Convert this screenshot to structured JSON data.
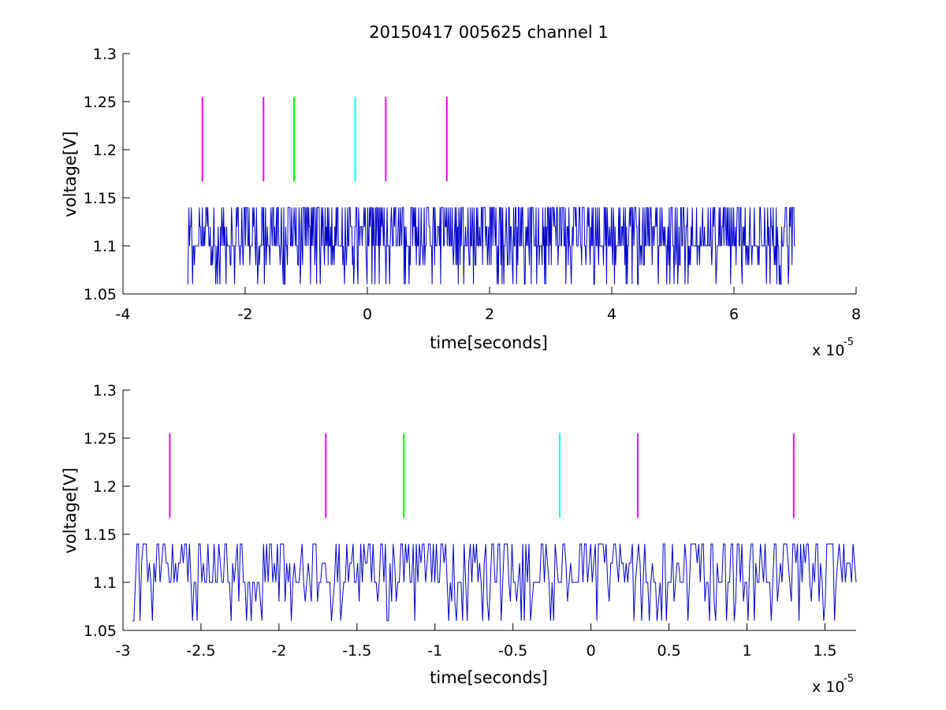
{
  "chart_data": [
    {
      "type": "line",
      "title": "20150417 005625 channel 1",
      "xlabel": "time[seconds]",
      "ylabel": "voltage[V]",
      "x_multiplier_base": "x 10",
      "x_multiplier_exp": "-5",
      "xlim": [
        -4,
        8
      ],
      "ylim": [
        1.05,
        1.3
      ],
      "xticks": [
        -4,
        -2,
        0,
        2,
        4,
        6,
        8
      ],
      "xtick_labels": [
        "-4",
        "-2",
        "0",
        "2",
        "4",
        "6",
        "8"
      ],
      "yticks": [
        1.05,
        1.1,
        1.15,
        1.2,
        1.25,
        1.3
      ],
      "ytick_labels": [
        "1.05",
        "1.1",
        "1.15",
        "1.2",
        "1.25",
        "1.3"
      ],
      "grid": false,
      "signal": {
        "color": "#0000cc",
        "x_start": -2.94,
        "x_end": 7.0,
        "levels": [
          1.06,
          1.08,
          1.1,
          1.12,
          1.14
        ],
        "baseline": 1.1,
        "approx_samples": 1000
      },
      "markers": [
        {
          "x": -2.7,
          "y_min": 1.167,
          "y_max": 1.255,
          "color": "#ff00ff"
        },
        {
          "x": -1.7,
          "y_min": 1.167,
          "y_max": 1.255,
          "color": "#ff00ff"
        },
        {
          "x": -1.2,
          "y_min": 1.167,
          "y_max": 1.255,
          "color": "#00ff00"
        },
        {
          "x": -0.2,
          "y_min": 1.167,
          "y_max": 1.255,
          "color": "#00ffff"
        },
        {
          "x": 0.3,
          "y_min": 1.167,
          "y_max": 1.255,
          "color": "#ff00ff"
        },
        {
          "x": 1.3,
          "y_min": 1.167,
          "y_max": 1.255,
          "color": "#ff00ff"
        }
      ]
    },
    {
      "type": "line",
      "title": "",
      "xlabel": "time[seconds]",
      "ylabel": "voltage[V]",
      "x_multiplier_base": "x 10",
      "x_multiplier_exp": "-5",
      "xlim": [
        -3.0,
        1.7
      ],
      "ylim": [
        1.05,
        1.3
      ],
      "xticks": [
        -3,
        -2.5,
        -2,
        -1.5,
        -1,
        -0.5,
        0,
        0.5,
        1,
        1.5
      ],
      "xtick_labels": [
        "-3",
        "-2.5",
        "-2",
        "-1.5",
        "-1",
        "-0.5",
        "0",
        "0.5",
        "1",
        "1.5"
      ],
      "yticks": [
        1.05,
        1.1,
        1.15,
        1.2,
        1.25,
        1.3
      ],
      "ytick_labels": [
        "1.05",
        "1.1",
        "1.15",
        "1.2",
        "1.25",
        "1.3"
      ],
      "grid": false,
      "signal": {
        "color": "#0000cc",
        "x_start": -2.94,
        "x_end": 1.7,
        "levels": [
          1.06,
          1.08,
          1.1,
          1.12,
          1.14
        ],
        "baseline": 1.1,
        "approx_samples": 470
      },
      "markers": [
        {
          "x": -2.7,
          "y_min": 1.167,
          "y_max": 1.255,
          "color": "#ff00ff"
        },
        {
          "x": -1.7,
          "y_min": 1.167,
          "y_max": 1.255,
          "color": "#ff00ff"
        },
        {
          "x": -1.2,
          "y_min": 1.167,
          "y_max": 1.255,
          "color": "#00ff00"
        },
        {
          "x": -0.2,
          "y_min": 1.167,
          "y_max": 1.255,
          "color": "#00ffff"
        },
        {
          "x": 0.3,
          "y_min": 1.167,
          "y_max": 1.255,
          "color": "#ff00ff"
        },
        {
          "x": 1.3,
          "y_min": 1.167,
          "y_max": 1.255,
          "color": "#ff00ff"
        }
      ]
    }
  ]
}
